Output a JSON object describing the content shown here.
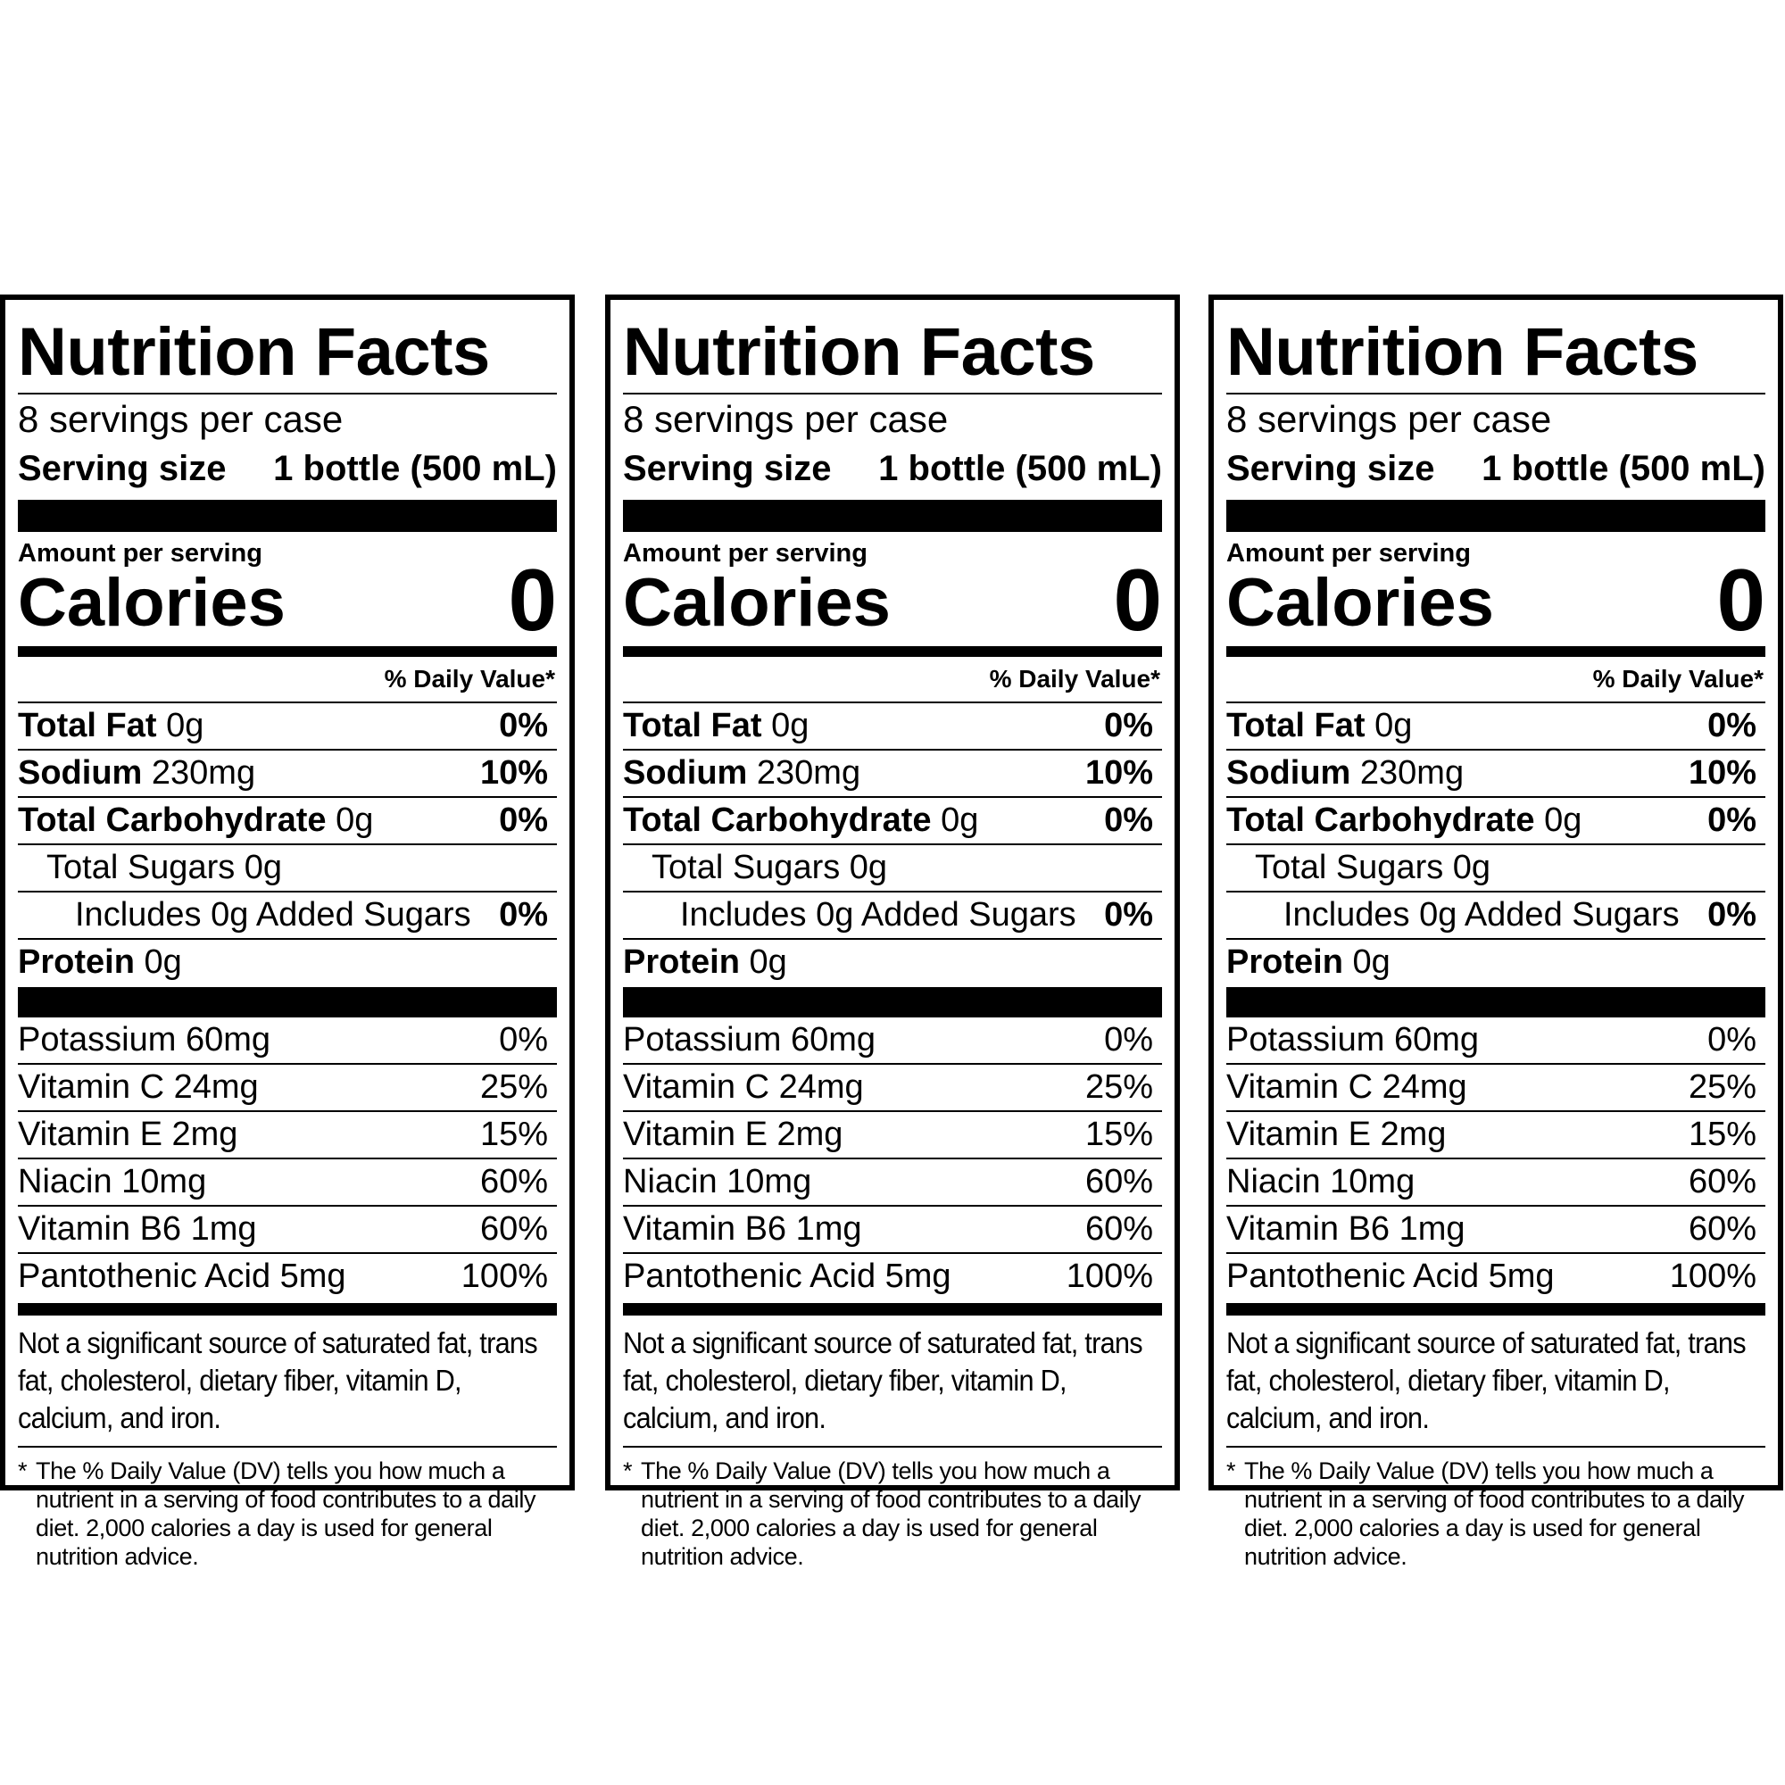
{
  "panels": [
    {
      "title": "Nutrition Facts",
      "servings_per_case": "8 servings per case",
      "serving_size_label": "Serving size",
      "serving_size_value": "1 bottle (500 mL)",
      "amount_per_serving": "Amount per serving",
      "calories_label": "Calories",
      "calories_value": "0",
      "daily_value_header": "% Daily Value*",
      "nutrients": [
        {
          "name": "Total Fat",
          "amount": "0g",
          "dv": "0%"
        },
        {
          "name": "Sodium",
          "amount": "230mg",
          "dv": "10%"
        },
        {
          "name": "Total Carbohydrate",
          "amount": "0g",
          "dv": "0%"
        },
        {
          "label": "Total Sugars 0g",
          "dv": ""
        },
        {
          "label": "Includes 0g Added Sugars",
          "dv": "0%"
        },
        {
          "name": "Protein",
          "amount": "0g",
          "dv": ""
        }
      ],
      "vitamins": [
        {
          "label": "Potassium 60mg",
          "dv": "0%"
        },
        {
          "label": "Vitamin C 24mg",
          "dv": "25%"
        },
        {
          "label": "Vitamin E 2mg",
          "dv": "15%"
        },
        {
          "label": "Niacin 10mg",
          "dv": "60%"
        },
        {
          "label": "Vitamin B6 1mg",
          "dv": "60%"
        },
        {
          "label": "Pantothenic Acid 5mg",
          "dv": "100%"
        }
      ],
      "not_significant": "Not a significant source of saturated fat, trans fat, cholesterol, dietary fiber, vitamin D, calcium, and iron.",
      "footnote_star": "*",
      "footnote": "The % Daily Value (DV) tells you how much a nutrient in a serving of food contributes to a daily diet. 2,000 calories a day is used for general nutrition advice."
    },
    {
      "title": "Nutrition Facts",
      "servings_per_case": "8 servings per case",
      "serving_size_label": "Serving size",
      "serving_size_value": "1 bottle (500 mL)",
      "amount_per_serving": "Amount per serving",
      "calories_label": "Calories",
      "calories_value": "0",
      "daily_value_header": "% Daily Value*",
      "nutrients": [
        {
          "name": "Total Fat",
          "amount": "0g",
          "dv": "0%"
        },
        {
          "name": "Sodium",
          "amount": "230mg",
          "dv": "10%"
        },
        {
          "name": "Total Carbohydrate",
          "amount": "0g",
          "dv": "0%"
        },
        {
          "label": "Total Sugars 0g",
          "dv": ""
        },
        {
          "label": "Includes 0g Added Sugars",
          "dv": "0%"
        },
        {
          "name": "Protein",
          "amount": "0g",
          "dv": ""
        }
      ],
      "vitamins": [
        {
          "label": "Potassium 60mg",
          "dv": "0%"
        },
        {
          "label": "Vitamin C 24mg",
          "dv": "25%"
        },
        {
          "label": "Vitamin E 2mg",
          "dv": "15%"
        },
        {
          "label": "Niacin 10mg",
          "dv": "60%"
        },
        {
          "label": "Vitamin B6 1mg",
          "dv": "60%"
        },
        {
          "label": "Pantothenic Acid 5mg",
          "dv": "100%"
        }
      ],
      "not_significant": "Not a significant source of saturated fat, trans fat, cholesterol, dietary fiber, vitamin D, calcium, and iron.",
      "footnote_star": "*",
      "footnote": "The % Daily Value (DV) tells you how much a nutrient in a serving of food contributes to a daily diet. 2,000 calories a day is used for general nutrition advice."
    },
    {
      "title": "Nutrition Facts",
      "servings_per_case": "8 servings per case",
      "serving_size_label": "Serving size",
      "serving_size_value": "1 bottle (500 mL)",
      "amount_per_serving": "Amount per serving",
      "calories_label": "Calories",
      "calories_value": "0",
      "daily_value_header": "% Daily Value*",
      "nutrients": [
        {
          "name": "Total Fat",
          "amount": "0g",
          "dv": "0%"
        },
        {
          "name": "Sodium",
          "amount": "230mg",
          "dv": "10%"
        },
        {
          "name": "Total Carbohydrate",
          "amount": "0g",
          "dv": "0%"
        },
        {
          "label": "Total Sugars 0g",
          "dv": ""
        },
        {
          "label": "Includes 0g Added Sugars",
          "dv": "0%"
        },
        {
          "name": "Protein",
          "amount": "0g",
          "dv": ""
        }
      ],
      "vitamins": [
        {
          "label": "Potassium 60mg",
          "dv": "0%"
        },
        {
          "label": "Vitamin C 24mg",
          "dv": "25%"
        },
        {
          "label": "Vitamin E 2mg",
          "dv": "15%"
        },
        {
          "label": "Niacin 10mg",
          "dv": "60%"
        },
        {
          "label": "Vitamin B6 1mg",
          "dv": "60%"
        },
        {
          "label": "Pantothenic Acid 5mg",
          "dv": "100%"
        }
      ],
      "not_significant": "Not a significant source of saturated fat, trans fat, cholesterol, dietary fiber, vitamin D, calcium, and iron.",
      "footnote_star": "*",
      "footnote": "The % Daily Value (DV) tells you how much a nutrient in a serving of food contributes to a daily diet. 2,000 calories a day is used for general nutrition advice."
    }
  ]
}
